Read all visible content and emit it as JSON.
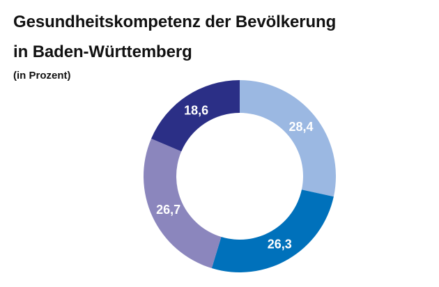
{
  "title_line1": "Gesundheitskompetenz der Bevölkerung",
  "title_line2": "in Baden-Württemberg",
  "subtitle": "(in Prozent)",
  "chart_data": {
    "type": "pie",
    "donut": true,
    "unit": "%",
    "categories": [
      "",
      "",
      "",
      ""
    ],
    "values": [
      28.4,
      26.3,
      26.7,
      18.6
    ],
    "value_labels": [
      "28,4",
      "26,3",
      "26,7",
      "18,6"
    ],
    "colors": [
      "#9bb8e2",
      "#0071bb",
      "#8b86bd",
      "#2b2f86"
    ],
    "start": "12 o'clock",
    "direction": "clockwise",
    "legend": "none"
  }
}
